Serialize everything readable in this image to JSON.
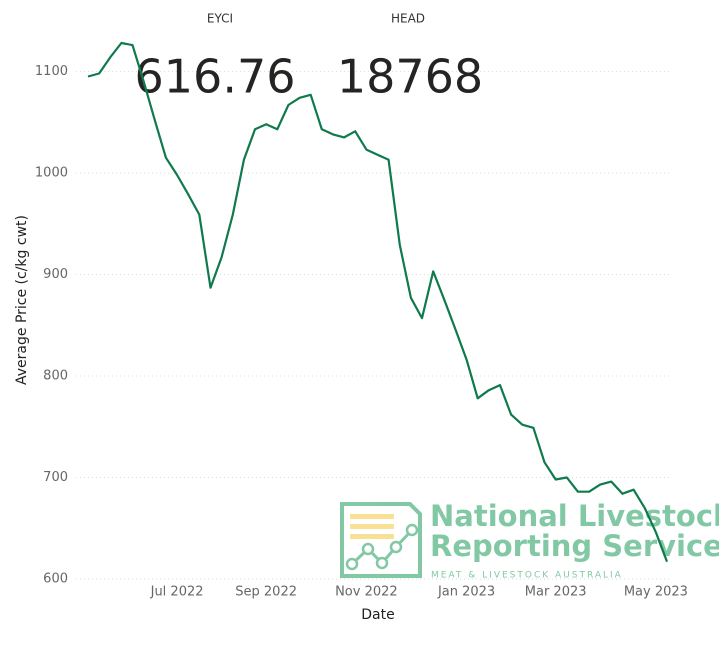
{
  "cards": [
    {
      "label": "EYCI",
      "value": 616.76
    },
    {
      "label": "HEAD",
      "value": 18768
    }
  ],
  "logo": {
    "line1": "National Livestock",
    "line2": "Reporting Service",
    "tagline": "MEAT & LIVESTOCK AUSTRALIA"
  },
  "chart_data": {
    "type": "line",
    "x_label": "Date",
    "y_label": "Average Price (c/kg cwt)",
    "categories": [
      null,
      null,
      null,
      null,
      null,
      null,
      null,
      null,
      "Jul 2022",
      null,
      null,
      null,
      null,
      null,
      null,
      null,
      "Sep 2022",
      null,
      null,
      null,
      null,
      null,
      null,
      null,
      null,
      "Nov 2022",
      null,
      null,
      null,
      null,
      null,
      null,
      null,
      null,
      "Jan 2023",
      null,
      null,
      null,
      null,
      null,
      null,
      null,
      "Mar 2023",
      null,
      null,
      null,
      null,
      null,
      null,
      null,
      null,
      "May 2023",
      null
    ],
    "values": [
      1095,
      1098,
      1114,
      1128,
      1126,
      1090,
      1052,
      1015,
      998,
      979,
      959,
      887,
      917,
      959,
      1013,
      1043,
      1048,
      1043,
      1067,
      1074,
      1077,
      1043,
      1038,
      1035,
      1041,
      1023,
      1018,
      1013,
      929,
      877,
      857,
      903,
      875,
      846,
      816,
      778,
      786,
      791,
      762,
      752,
      749,
      715,
      698,
      700,
      686,
      686,
      693,
      696,
      684,
      688,
      670,
      646,
      617
    ],
    "color": "#0f7a4c",
    "ylim": [
      600,
      1130
    ],
    "yticks": [
      600,
      700,
      800,
      900,
      1000,
      1100
    ],
    "grid": true
  }
}
